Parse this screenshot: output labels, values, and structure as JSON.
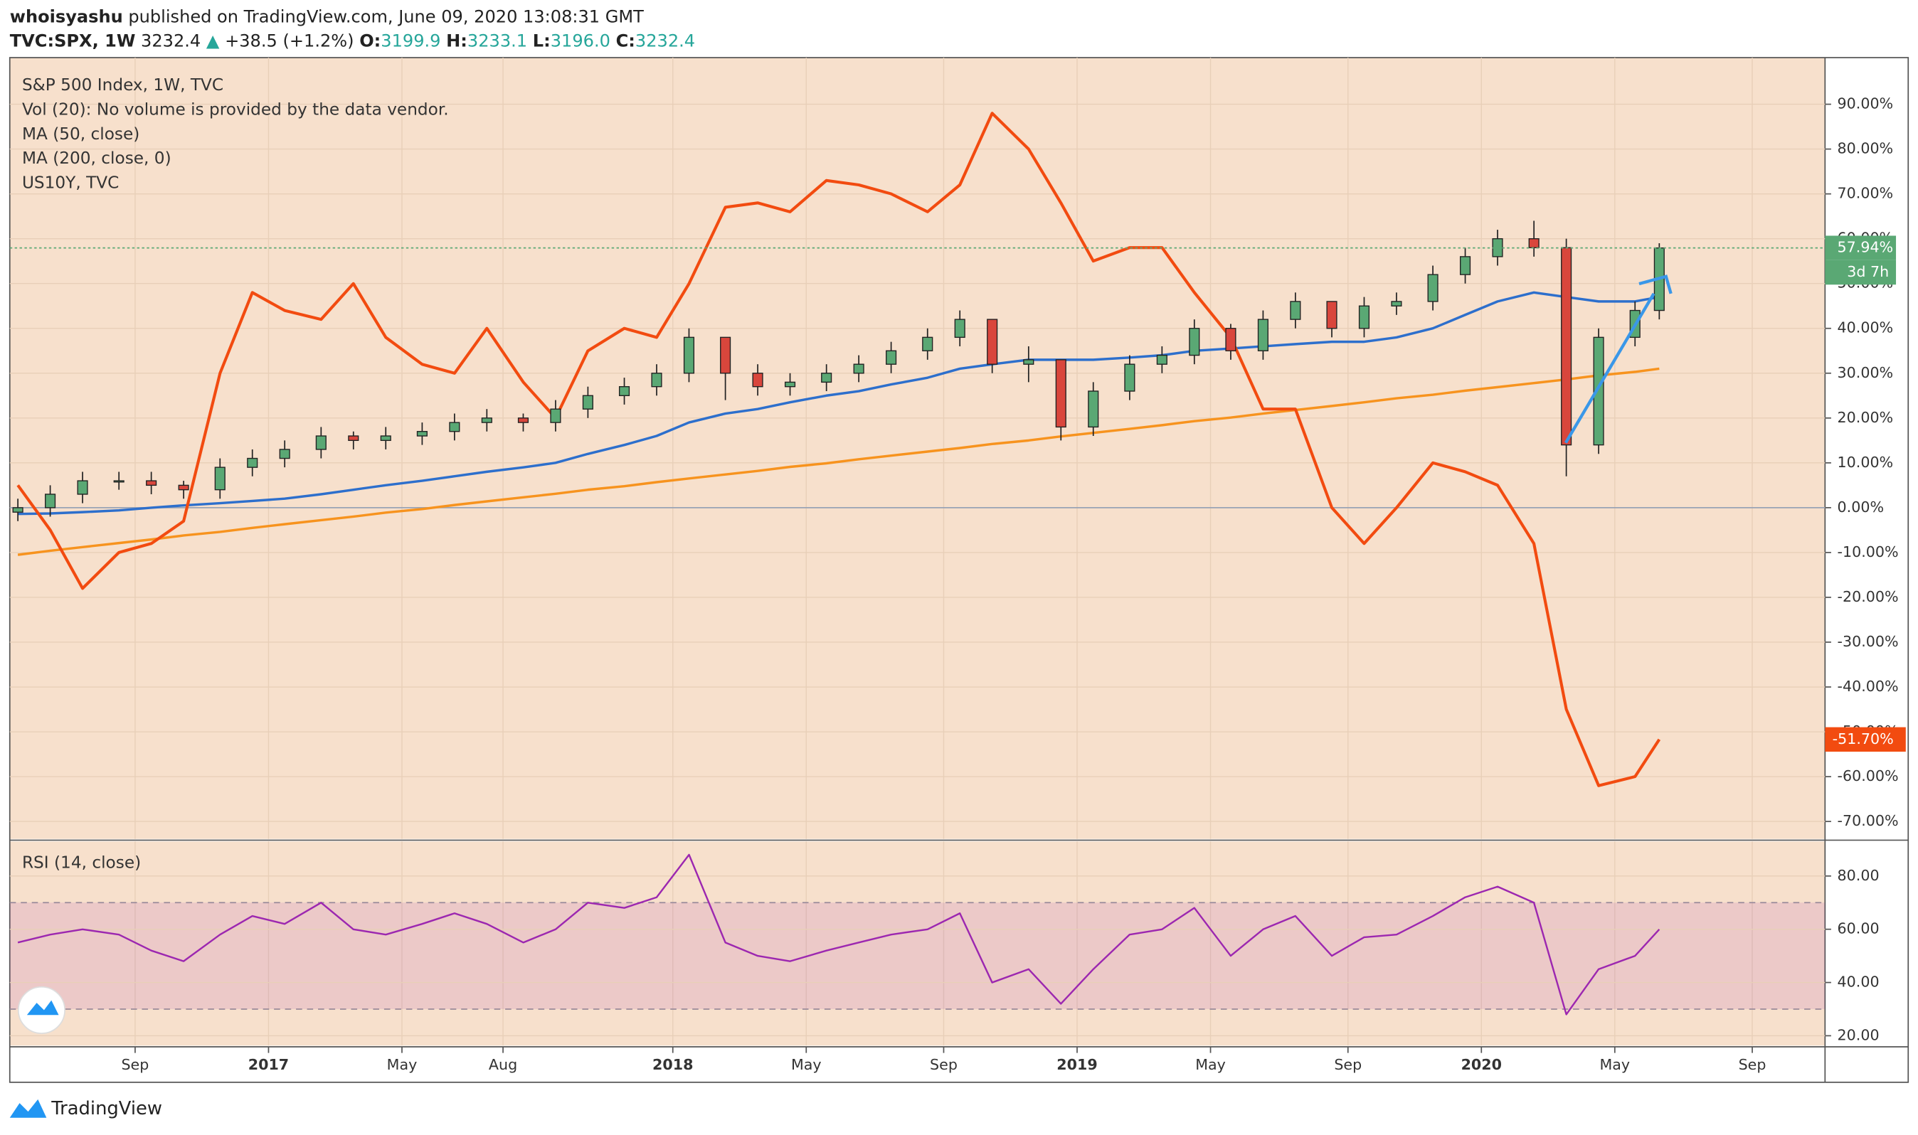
{
  "header": {
    "author": "whoisyashu",
    "published": "published on TradingView.com, June 09, 2020 13:08:31 GMT",
    "symbol": "TVC:SPX, 1W",
    "price": "3232.4",
    "arrow": "▲",
    "change": "+38.5 (+1.2%)",
    "ohlc": [
      {
        "label": "O:",
        "value": "3199.9"
      },
      {
        "label": "H:",
        "value": "3233.1"
      },
      {
        "label": "L:",
        "value": "3196.0"
      },
      {
        "label": "C:",
        "value": "3232.4"
      }
    ]
  },
  "footer": {
    "brand": "TradingView"
  },
  "chart_data": [
    {
      "type": "candlestick",
      "title": "S&P 500 Index, 1W, TVC",
      "subtitle": "Vol (20): No volume is provided by the data vendor.",
      "x": [
        2016.38,
        2016.46,
        2016.54,
        2016.63,
        2016.71,
        2016.79,
        2016.88,
        2016.96,
        2017.04,
        2017.13,
        2017.21,
        2017.29,
        2017.38,
        2017.46,
        2017.54,
        2017.63,
        2017.71,
        2017.79,
        2017.88,
        2017.96,
        2018.04,
        2018.13,
        2018.21,
        2018.29,
        2018.38,
        2018.46,
        2018.54,
        2018.63,
        2018.71,
        2018.79,
        2018.88,
        2018.96,
        2019.04,
        2019.13,
        2019.21,
        2019.29,
        2019.38,
        2019.46,
        2019.54,
        2019.63,
        2019.71,
        2019.79,
        2019.88,
        2019.96,
        2020.04,
        2020.13,
        2020.21,
        2020.29,
        2020.38,
        2020.44
      ],
      "open": [
        -1,
        0,
        3,
        6,
        6,
        5,
        4,
        9,
        11,
        13,
        16,
        15,
        16,
        17,
        19,
        20,
        19,
        22,
        25,
        27,
        30,
        38,
        30,
        27,
        28,
        30,
        32,
        35,
        38,
        42,
        32,
        33,
        18,
        26,
        32,
        34,
        40,
        35,
        42,
        46,
        40,
        45,
        46,
        52,
        56,
        60,
        58,
        14,
        38,
        44
      ],
      "high": [
        2,
        5,
        8,
        8,
        8,
        6,
        11,
        13,
        15,
        18,
        17,
        18,
        19,
        21,
        22,
        21,
        24,
        27,
        29,
        32,
        40,
        38,
        32,
        30,
        32,
        34,
        37,
        40,
        44,
        42,
        36,
        33,
        28,
        34,
        36,
        42,
        41,
        44,
        48,
        46,
        47,
        48,
        54,
        58,
        62,
        64,
        60,
        40,
        46,
        59
      ],
      "low": [
        -3,
        -2,
        1,
        4,
        3,
        2,
        2,
        7,
        9,
        11,
        13,
        13,
        14,
        15,
        17,
        17,
        17,
        20,
        23,
        25,
        28,
        24,
        25,
        25,
        26,
        28,
        30,
        33,
        36,
        30,
        28,
        15,
        16,
        24,
        30,
        32,
        33,
        33,
        40,
        38,
        38,
        43,
        44,
        50,
        54,
        56,
        7,
        12,
        36,
        42
      ],
      "close": [
        0,
        3,
        6,
        6,
        5,
        4,
        9,
        11,
        13,
        16,
        15,
        16,
        17,
        19,
        20,
        19,
        22,
        25,
        27,
        30,
        38,
        30,
        27,
        28,
        30,
        32,
        35,
        38,
        42,
        32,
        33,
        18,
        26,
        32,
        34,
        40,
        35,
        42,
        46,
        40,
        45,
        46,
        52,
        56,
        60,
        58,
        14,
        38,
        44,
        57.94
      ],
      "up_color": "#5aa874",
      "down_color": "#d9463c",
      "last_label": {
        "value": 57.94,
        "label": "57.94%"
      },
      "countdown": "3d 7h",
      "series": [
        {
          "name": "MA (50, close)",
          "color": "#2d6fcc",
          "values": [
            -1.4,
            -1.3,
            -1,
            -0.6,
            0,
            0.5,
            1,
            1.5,
            2,
            3,
            4,
            5,
            6,
            7,
            8,
            9,
            10,
            12,
            14,
            16,
            19,
            21,
            22,
            23.5,
            25,
            26,
            27.5,
            29,
            31,
            32,
            33,
            33,
            33,
            33.5,
            34,
            35,
            35.5,
            36,
            36.5,
            37,
            37,
            38,
            40,
            43,
            46,
            48,
            47,
            46,
            46,
            47
          ]
        },
        {
          "name": "MA (200, close, 0)",
          "color": "#f7931e",
          "values": [
            -10.5,
            -9.6,
            -8.8,
            -7.9,
            -7.1,
            -6.2,
            -5.4,
            -4.5,
            -3.7,
            -2.8,
            -2.0,
            -1.1,
            -0.3,
            0.6,
            1.4,
            2.3,
            3.1,
            4.0,
            4.8,
            5.7,
            6.5,
            7.4,
            8.2,
            9.1,
            9.9,
            10.8,
            11.6,
            12.5,
            13.3,
            14.2,
            15.0,
            15.9,
            16.7,
            17.6,
            18.4,
            19.3,
            20.1,
            21.0,
            21.8,
            22.7,
            23.5,
            24.4,
            25.2,
            26.1,
            26.9,
            27.8,
            28.6,
            29.5,
            30.3,
            31.0
          ]
        },
        {
          "name": "US10Y, TVC",
          "color": "#f24b10",
          "values": [
            5,
            -5,
            -18,
            -10,
            -8,
            -3,
            30,
            48,
            44,
            42,
            50,
            38,
            32,
            30,
            40,
            28,
            20,
            35,
            40,
            38,
            50,
            67,
            68,
            66,
            73,
            72,
            70,
            66,
            72,
            88,
            80,
            68,
            55,
            58,
            58,
            48,
            38,
            22,
            22,
            0,
            -8,
            0,
            10,
            8,
            5,
            -8,
            -45,
            -62,
            -60,
            -51.7
          ],
          "last_label": {
            "value": -51.7,
            "label": "-51.70%"
          }
        }
      ],
      "xlim": [
        2016.36,
        2020.85
      ],
      "ylim": [
        -73.9,
        100.4
      ],
      "yticks": [
        {
          "value": -70,
          "label": "-70.00%"
        },
        {
          "value": -60,
          "label": "-60.00%"
        },
        {
          "value": -50,
          "label": "-50.00%"
        },
        {
          "value": -40,
          "label": "-40.00%"
        },
        {
          "value": -30,
          "label": "-30.00%"
        },
        {
          "value": -20,
          "label": "-20.00%"
        },
        {
          "value": -10,
          "label": "-10.00%"
        },
        {
          "value": 0,
          "label": "0.00%"
        },
        {
          "value": 10,
          "label": "10.00%"
        },
        {
          "value": 20,
          "label": "20.00%"
        },
        {
          "value": 30,
          "label": "30.00%"
        },
        {
          "value": 40,
          "label": "40.00%"
        },
        {
          "value": 50,
          "label": "50.00%"
        },
        {
          "value": 60,
          "label": "60.00%"
        },
        {
          "value": 70,
          "label": "70.00%"
        },
        {
          "value": 80,
          "label": "80.00%"
        },
        {
          "value": 90,
          "label": "90.00%"
        }
      ],
      "zero_line": 0
    },
    {
      "type": "line",
      "title": "RSI (14, close)",
      "color": "#9c27b0",
      "x": [
        2016.38,
        2016.46,
        2016.54,
        2016.63,
        2016.71,
        2016.79,
        2016.88,
        2016.96,
        2017.04,
        2017.13,
        2017.21,
        2017.29,
        2017.38,
        2017.46,
        2017.54,
        2017.63,
        2017.71,
        2017.79,
        2017.88,
        2017.96,
        2018.04,
        2018.13,
        2018.21,
        2018.29,
        2018.38,
        2018.46,
        2018.54,
        2018.63,
        2018.71,
        2018.79,
        2018.88,
        2018.96,
        2019.04,
        2019.13,
        2019.21,
        2019.29,
        2019.38,
        2019.46,
        2019.54,
        2019.63,
        2019.71,
        2019.79,
        2019.88,
        2019.96,
        2020.04,
        2020.13,
        2020.21,
        2020.29,
        2020.38,
        2020.44
      ],
      "values": [
        55,
        58,
        60,
        58,
        52,
        48,
        58,
        65,
        62,
        70,
        60,
        58,
        62,
        66,
        62,
        55,
        60,
        70,
        68,
        72,
        88,
        55,
        50,
        48,
        52,
        55,
        58,
        60,
        66,
        40,
        45,
        32,
        45,
        58,
        60,
        68,
        50,
        60,
        65,
        50,
        57,
        58,
        65,
        72,
        76,
        70,
        28,
        45,
        50,
        60
      ],
      "band": [
        30,
        70
      ],
      "band_color": "#9c27b0",
      "xlim": [
        2016.36,
        2020.85
      ],
      "ylim": [
        16.3,
        93
      ],
      "yticks": [
        {
          "value": 20,
          "label": "20.00"
        },
        {
          "value": 40,
          "label": "40.00"
        },
        {
          "value": 60,
          "label": "60.00"
        },
        {
          "value": 80,
          "label": "80.00"
        }
      ],
      "xticks": [
        {
          "value": 2016.67,
          "label": "Sep"
        },
        2017,
        {
          "value": 2017.33,
          "label": "May"
        },
        {
          "value": 2017.58,
          "label": "Aug"
        },
        2018,
        {
          "value": 2018.33,
          "label": "May"
        },
        {
          "value": 2018.67,
          "label": "Sep"
        },
        2019,
        {
          "value": 2019.33,
          "label": "May"
        },
        {
          "value": 2019.67,
          "label": "Sep"
        },
        2020,
        {
          "value": 2020.33,
          "label": "May"
        },
        {
          "value": 2020.67,
          "label": "Sep"
        }
      ]
    }
  ]
}
